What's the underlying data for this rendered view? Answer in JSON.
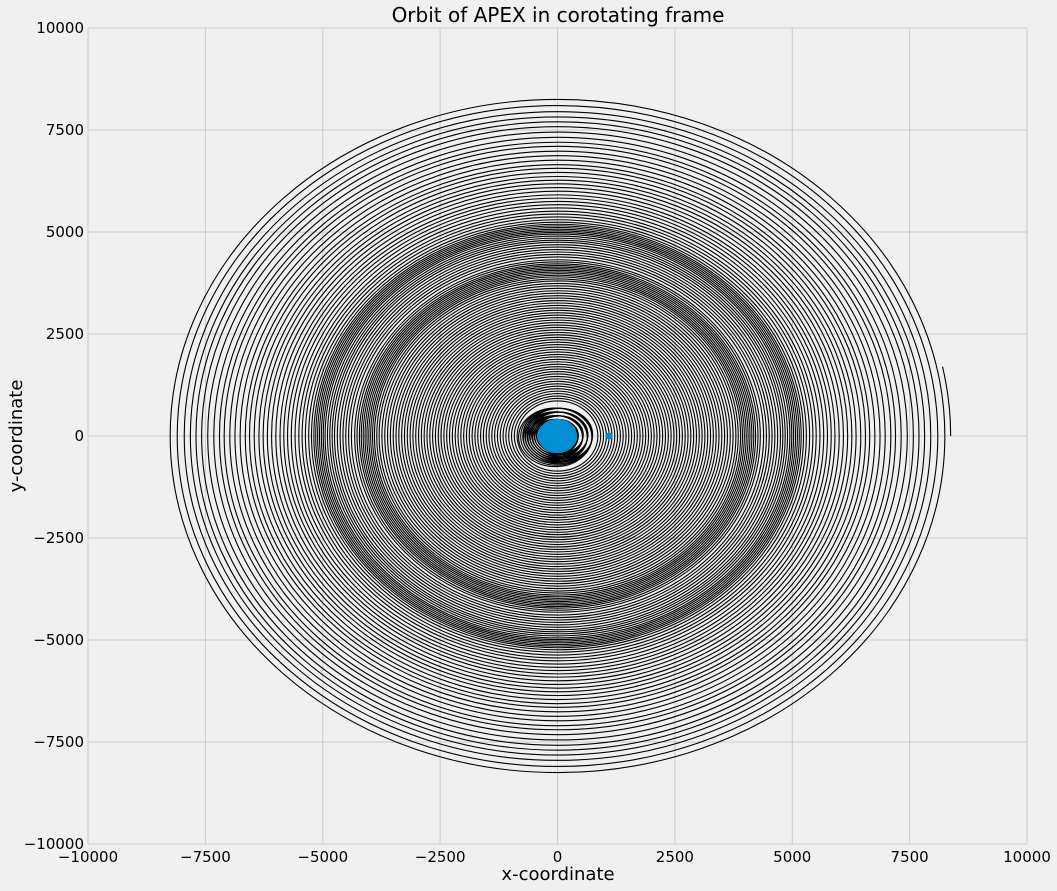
{
  "chart_data": {
    "type": "line",
    "title": "Orbit of APEX in corotating frame",
    "xlabel": "x-coordinate",
    "ylabel": "y-coordinate",
    "xlim": [
      -10000,
      10000
    ],
    "ylim": [
      -10000,
      10000
    ],
    "xticks": [
      -10000,
      -7500,
      -5000,
      -2500,
      0,
      2500,
      5000,
      7500,
      10000
    ],
    "yticks": [
      -10000,
      -7500,
      -5000,
      -2500,
      0,
      2500,
      5000,
      7500,
      10000
    ],
    "grid": true,
    "series": [
      {
        "kind": "spiral-trajectory",
        "color": "#000000",
        "ring_radii": [
          8250,
          8100,
          7950,
          7820,
          7700,
          7580,
          7450,
          7320,
          7200,
          7100,
          6980,
          6870,
          6760,
          6650,
          6560,
          6460,
          6360,
          6270,
          6180,
          6090,
          6000,
          5910,
          5830,
          5750,
          5670,
          5590,
          5510,
          5440,
          5370,
          5300,
          5240,
          5190,
          5150,
          5110,
          5070,
          5030,
          4990,
          4950,
          4900,
          4850,
          4800,
          4750,
          4690,
          4630,
          4570,
          4510,
          4450,
          4390,
          4320,
          4270,
          4220,
          4180,
          4140,
          4100,
          4060,
          4020,
          3980,
          3940,
          3900,
          3850,
          3800,
          3740,
          3680,
          3620,
          3560,
          3500,
          3440,
          3380,
          3320,
          3260,
          3200,
          3140,
          3080,
          3020,
          2960,
          2900,
          2840,
          2780,
          2720,
          2660,
          2600,
          2540,
          2480,
          2420,
          2360,
          2300,
          2240,
          2180,
          2120,
          2060,
          2000,
          1940,
          1880,
          1820,
          1760,
          1700,
          1640,
          1580,
          1520,
          1460,
          1400,
          1340,
          1280,
          1220,
          1160,
          1100,
          1040,
          980,
          920,
          860
        ],
        "end_point": [
          8200,
          1700
        ]
      },
      {
        "kind": "central-body",
        "color": "#008fd5",
        "center": [
          0,
          0
        ],
        "radius": 420
      },
      {
        "kind": "marker",
        "color": "#008fd5",
        "point": [
          1100,
          0
        ]
      }
    ]
  }
}
